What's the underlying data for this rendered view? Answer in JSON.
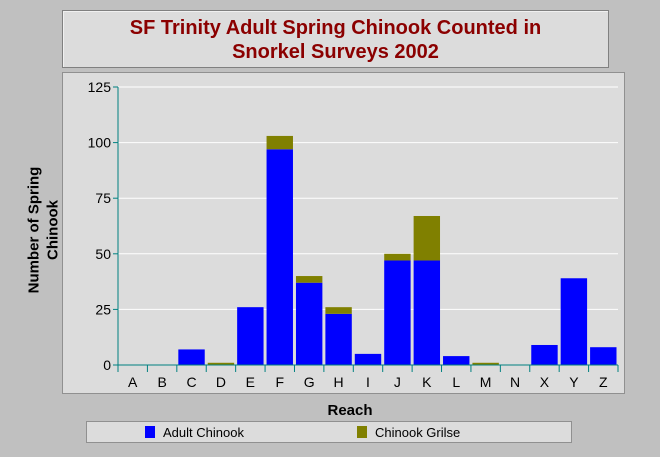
{
  "chart_data": {
    "type": "bar",
    "stacked": true,
    "title_lines": [
      "SF Trinity Adult Spring Chinook Counted in",
      "Snorkel Surveys 2002"
    ],
    "xlabel": "Reach",
    "ylabel_lines": [
      "Number of Spring",
      "Chinook"
    ],
    "categories": [
      "A",
      "B",
      "C",
      "D",
      "E",
      "F",
      "G",
      "H",
      "I",
      "J",
      "K",
      "L",
      "M",
      "N",
      "X",
      "Y",
      "Z"
    ],
    "ylim": [
      0,
      125
    ],
    "yticks": [
      0,
      25,
      50,
      75,
      100,
      125
    ],
    "grid": true,
    "legend_position": "bottom",
    "series": [
      {
        "name": "Adult Chinook",
        "color": "#0000ff",
        "values": [
          0,
          0,
          7,
          0,
          26,
          97,
          37,
          23,
          5,
          47,
          47,
          4,
          0,
          0,
          9,
          39,
          8
        ]
      },
      {
        "name": "Chinook Grilse",
        "color": "#808000",
        "values": [
          0,
          0,
          0,
          1,
          0,
          6,
          3,
          3,
          0,
          3,
          20,
          0,
          1,
          0,
          0,
          0,
          0
        ]
      }
    ]
  }
}
